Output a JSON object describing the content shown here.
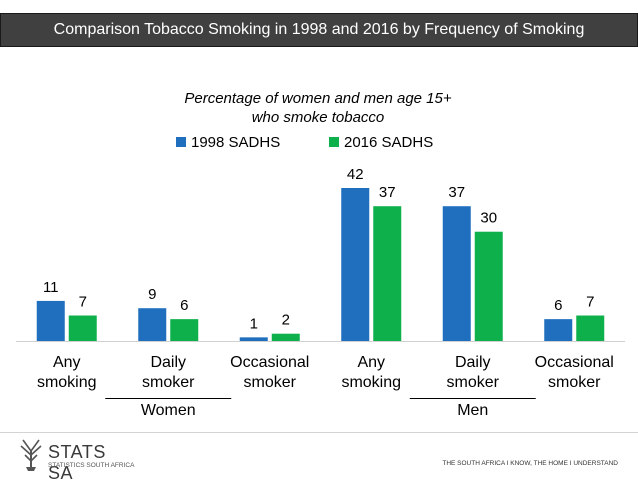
{
  "header": {
    "title": "Comparison Tobacco Smoking in 1998 and 2016 by Frequency of Smoking"
  },
  "chart_data": {
    "type": "bar",
    "title": "Percentage of women and men age 15+ who smoke tobacco",
    "title_lines": [
      "Percentage of women and men age 15+",
      "who smoke tobacco"
    ],
    "categories": [
      {
        "lines": [
          "Any",
          "smoking"
        ]
      },
      {
        "lines": [
          "Daily",
          "smoker"
        ]
      },
      {
        "lines": [
          "Occasional",
          "smoker"
        ]
      },
      {
        "lines": [
          "Any",
          "smoking"
        ]
      },
      {
        "lines": [
          "Daily",
          "smoker"
        ]
      },
      {
        "lines": [
          "Occasional",
          "smoker"
        ]
      }
    ],
    "groups": [
      "Women",
      "Men"
    ],
    "series": [
      {
        "name": "1998 SADHS",
        "color": "#1f6fbe",
        "values": [
          11,
          9,
          1,
          42,
          37,
          6
        ]
      },
      {
        "name": "2016 SADHS",
        "color": "#0db04b",
        "values": [
          7,
          6,
          2,
          37,
          30,
          7
        ]
      }
    ],
    "legend_position": "top",
    "grid": false
  },
  "footer": {
    "logo_name": "STATS SA",
    "logo_sub": "STATISTICS SOUTH AFRICA",
    "tagline": "THE SOUTH AFRICA I KNOW, THE HOME I UNDERSTAND"
  }
}
